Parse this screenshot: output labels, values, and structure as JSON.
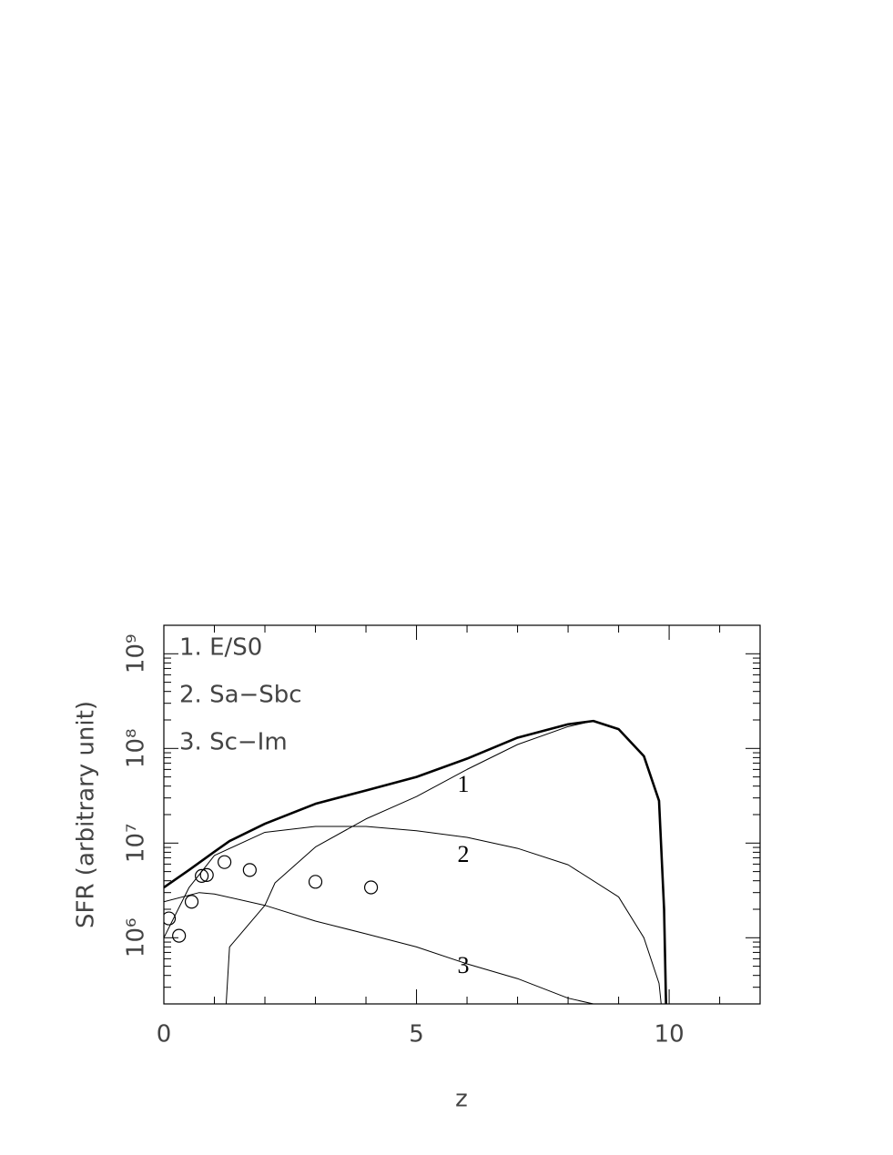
{
  "chart_data": {
    "type": "line",
    "xlabel": "z",
    "ylabel": "SFR (arbitrary unit)",
    "xlim": [
      0,
      11.8
    ],
    "ylim": [
      200000,
      2000000000
    ],
    "yscale": "log",
    "xticks": [
      0,
      5,
      10
    ],
    "xminorticks": [
      1,
      2,
      3,
      4,
      6,
      7,
      8,
      9,
      11
    ],
    "yticks": [
      {
        "value": 1000000,
        "label": "10⁶"
      },
      {
        "value": 10000000,
        "label": "10⁷"
      },
      {
        "value": 100000000,
        "label": "10⁸"
      },
      {
        "value": 1000000000,
        "label": "10⁹"
      }
    ],
    "yminorticks": [
      300000,
      400000,
      500000,
      600000,
      700000,
      800000,
      900000,
      2000000,
      3000000,
      4000000,
      5000000,
      6000000,
      7000000,
      8000000,
      9000000,
      20000000,
      30000000,
      40000000,
      50000000,
      60000000,
      70000000,
      80000000,
      90000000,
      200000000,
      300000000,
      400000000,
      500000000,
      600000000,
      700000000,
      800000000,
      900000000
    ],
    "legend": "upper left",
    "series": [
      {
        "color": "#000000",
        "width": 2.6,
        "x": [
          0,
          0.5,
          1,
          1.3,
          2,
          3,
          4,
          5,
          6,
          7,
          8,
          8.5,
          9,
          9.5,
          9.8,
          9.9,
          9.95
        ],
        "values": [
          3400000,
          5200000,
          8100000,
          10500000,
          16000000,
          26000000,
          36000000,
          50000000,
          78000000,
          130000000,
          180000000,
          195000000,
          160000000,
          83000000,
          28000000,
          2000000,
          100000
        ]
      },
      {
        "name": "1. E/S0",
        "color": "#000000",
        "width": 1,
        "x": [
          1.2,
          1.3,
          2,
          2.2,
          3,
          4,
          5,
          6,
          7,
          8,
          8.5
        ],
        "values": [
          100000,
          800000,
          2200000,
          3800000,
          9100000,
          18000000,
          31000000,
          60000000,
          110000000,
          170000000,
          195000000
        ]
      },
      {
        "name": "2. Sa−Sbc",
        "color": "#000000",
        "width": 1,
        "x": [
          0,
          0.5,
          1,
          2,
          3,
          4,
          5,
          6,
          7,
          8,
          9,
          9.5,
          9.8,
          9.9
        ],
        "values": [
          1000000,
          3400000,
          7400000,
          13000000,
          15000000,
          15000000,
          13500000,
          11500000,
          8800000,
          5900000,
          2700000,
          1000000,
          330000,
          100000
        ]
      },
      {
        "name": "3. Sc−Im",
        "color": "#000000",
        "width": 1,
        "x": [
          0,
          0.7,
          1,
          2,
          3,
          4,
          5,
          6,
          7,
          8,
          8.5
        ],
        "values": [
          2400000,
          3000000,
          2900000,
          2200000,
          1500000,
          1100000,
          800000,
          530000,
          370000,
          230000,
          200000
        ]
      }
    ],
    "points": {
      "x": [
        0.1,
        0.3,
        0.55,
        0.75,
        0.85,
        1.2,
        1.7,
        3.0,
        4.1
      ],
      "values": [
        1600000,
        1050000,
        2400000,
        4500000,
        4600000,
        6300000,
        5200000,
        3900000,
        3400000
      ]
    },
    "annotations": [
      "1",
      "2",
      "3"
    ]
  }
}
